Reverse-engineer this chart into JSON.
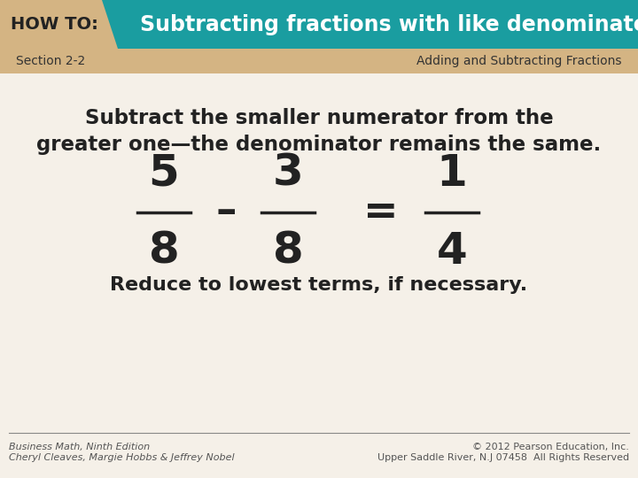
{
  "title_howto": "HOW TO:",
  "title_main": "Subtracting fractions with like denominators",
  "section_label": "Section 2-2",
  "section_right": "Adding and Subtracting Fractions",
  "body_text": "Subtract the smaller numerator from the\ngreater one—the denominator remains the same.",
  "reduce_text": "Reduce to lowest terms, if necessary.",
  "footer_left1": "Business Math, Ninth Edition",
  "footer_left2": "Cheryl Cleaves, Margie Hobbs & Jeffrey Nobel",
  "footer_right1": "© 2012 Pearson Education, Inc.",
  "footer_right2": "Upper Saddle River, N.J 07458  All Rights Reserved",
  "frac1_num": "5",
  "frac1_den": "8",
  "frac2_num": "3",
  "frac2_den": "8",
  "frac3_num": "1",
  "frac3_den": "4",
  "header_bg": "#1a9da0",
  "howto_bg": "#d4b483",
  "body_bg": "#f5f0e8",
  "footer_line_color": "#888888",
  "footer_text_color": "#555555",
  "section_text_color": "#333333",
  "body_text_color": "#222222",
  "white": "#ffffff"
}
